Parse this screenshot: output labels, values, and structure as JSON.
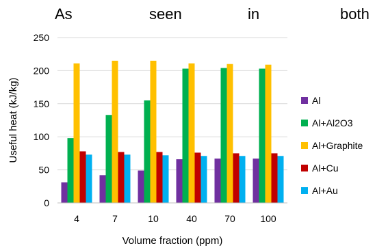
{
  "header_text": {
    "words": [
      "As",
      "seen",
      "in",
      "both"
    ]
  },
  "chart_data": {
    "type": "bar",
    "categories": [
      "4",
      "7",
      "10",
      "40",
      "70",
      "100"
    ],
    "series": [
      {
        "name": "Al",
        "color": "#7030a0",
        "values": [
          31,
          42,
          49,
          66,
          67,
          67
        ]
      },
      {
        "name": "Al+Al2O3",
        "color": "#00b050",
        "values": [
          98,
          133,
          155,
          203,
          204,
          203
        ]
      },
      {
        "name": "Al+Graphite",
        "color": "#ffc000",
        "values": [
          211,
          215,
          215,
          211,
          210,
          209
        ]
      },
      {
        "name": "Al+Cu",
        "color": "#c00000",
        "values": [
          78,
          77,
          77,
          76,
          75,
          75
        ]
      },
      {
        "name": "Al+Au",
        "color": "#00b0f0",
        "values": [
          73,
          73,
          72,
          71,
          71,
          71
        ]
      }
    ],
    "xlabel": "Volume fraction (ppm)",
    "ylabel": "Useful heat (kJ/kg)",
    "ylim": [
      0,
      250
    ],
    "yticks": [
      0,
      50,
      100,
      150,
      200,
      250
    ],
    "grid": true,
    "legend": "right"
  }
}
